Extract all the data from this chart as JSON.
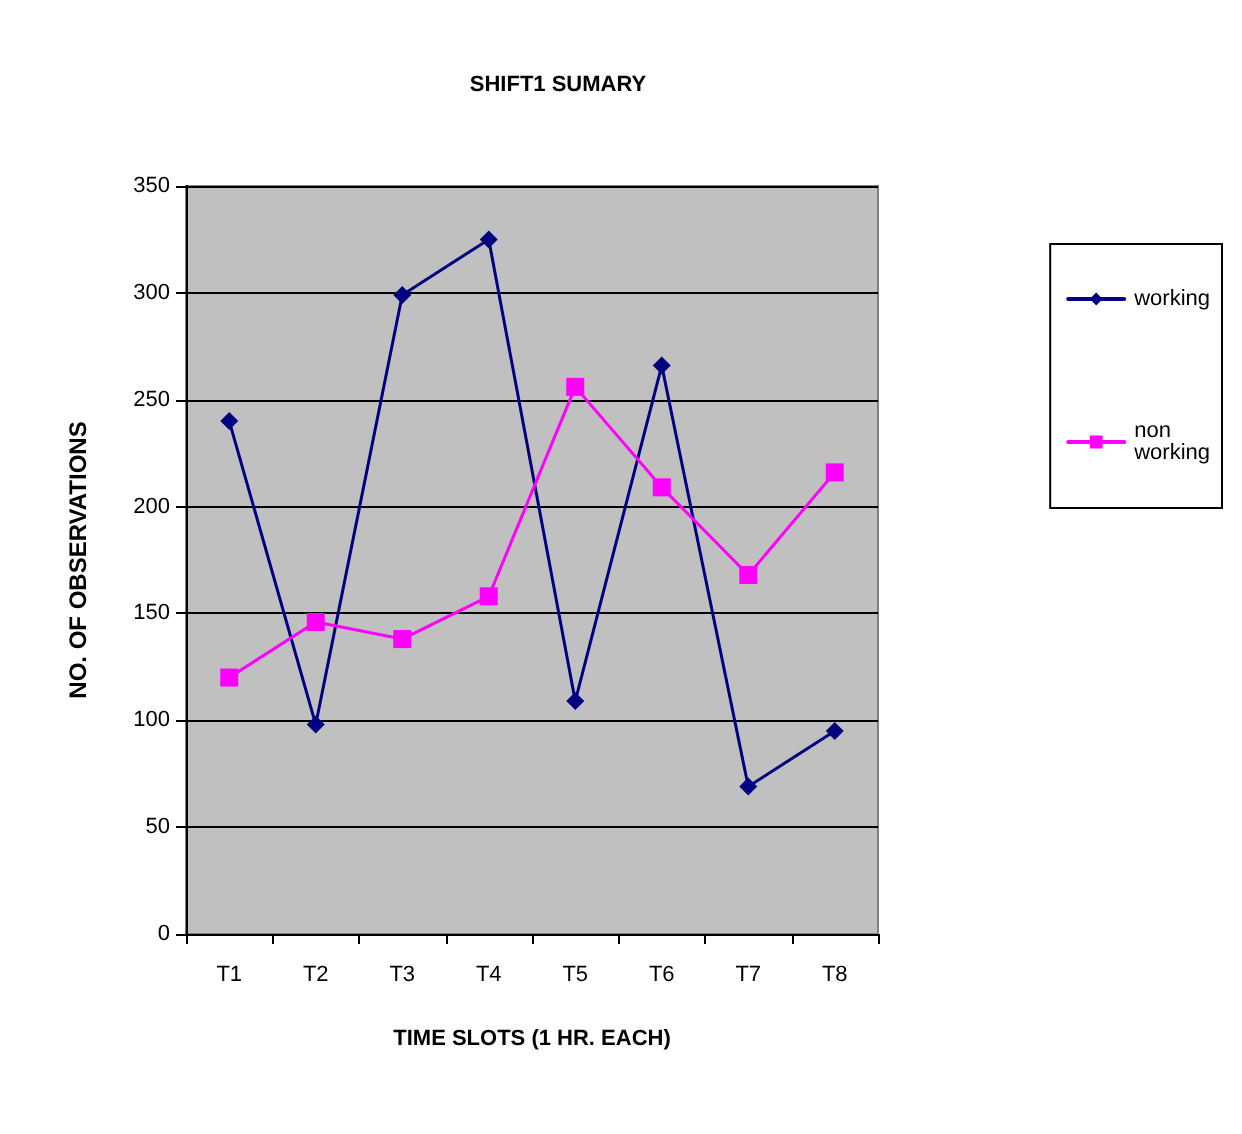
{
  "chart_data": {
    "type": "line",
    "title": "SHIFT1 SUMARY",
    "xlabel": "TIME SLOTS (1 HR. EACH)",
    "ylabel": "NO. OF OBSERVATIONS",
    "categories": [
      "T1",
      "T2",
      "T3",
      "T4",
      "T5",
      "T6",
      "T7",
      "T8"
    ],
    "series": [
      {
        "name": "working",
        "color": "#000080",
        "marker": "diamond",
        "values": [
          240,
          98,
          299,
          325,
          109,
          266,
          69,
          95
        ]
      },
      {
        "name": "non working",
        "color": "#ff00ff",
        "marker": "square",
        "values": [
          120,
          146,
          138,
          158,
          256,
          209,
          168,
          216
        ]
      }
    ],
    "ylim": [
      0,
      350
    ],
    "yticks": [
      0,
      50,
      100,
      150,
      200,
      250,
      300,
      350
    ],
    "grid": "y",
    "legend": "right"
  }
}
